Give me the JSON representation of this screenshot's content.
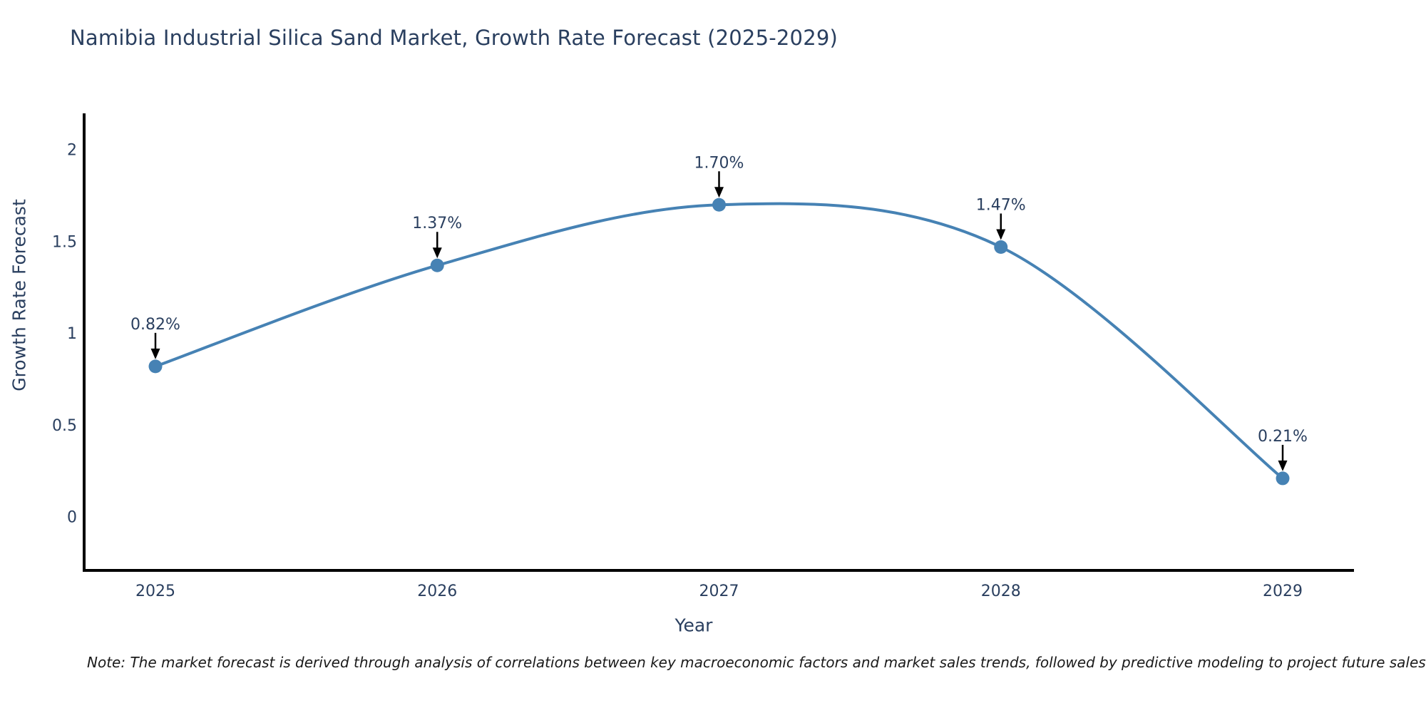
{
  "title": "Namibia Industrial Silica Sand Market, Growth Rate Forecast (2025-2029)",
  "note": "Note: The market forecast is derived through analysis of correlations between key macroeconomic factors and market sales trends, followed by predictive modeling to project future sales",
  "chart_data": {
    "type": "line",
    "title": "Namibia Industrial Silica Sand Market, Growth Rate Forecast (2025-2029)",
    "xlabel": "Year",
    "ylabel": "Growth Rate Forecast",
    "x": [
      2025,
      2026,
      2027,
      2028,
      2029
    ],
    "y": [
      0.82,
      1.37,
      1.7,
      1.47,
      0.21
    ],
    "point_labels": [
      "0.82%",
      "1.37%",
      "1.70%",
      "1.47%",
      "0.21%"
    ],
    "xticks": [
      "2025",
      "2026",
      "2027",
      "2028",
      "2029"
    ],
    "yticks": [
      0,
      0.5,
      1,
      1.5,
      2
    ],
    "ytick_labels": [
      "0",
      "0.5",
      "1",
      "1.5",
      "2"
    ],
    "ylim": [
      -0.29,
      2.19
    ],
    "xlim": [
      2024.75,
      2029.26
    ],
    "grid": false,
    "legend": false,
    "line_shape": "spline",
    "colors": {
      "line": "#4682b4",
      "marker": "#4682b4",
      "annotation_text": "#2a3f5f",
      "annotation_arrow": "#000000",
      "axis_line": "#000000",
      "tick_text": "#2a3f5f"
    }
  }
}
